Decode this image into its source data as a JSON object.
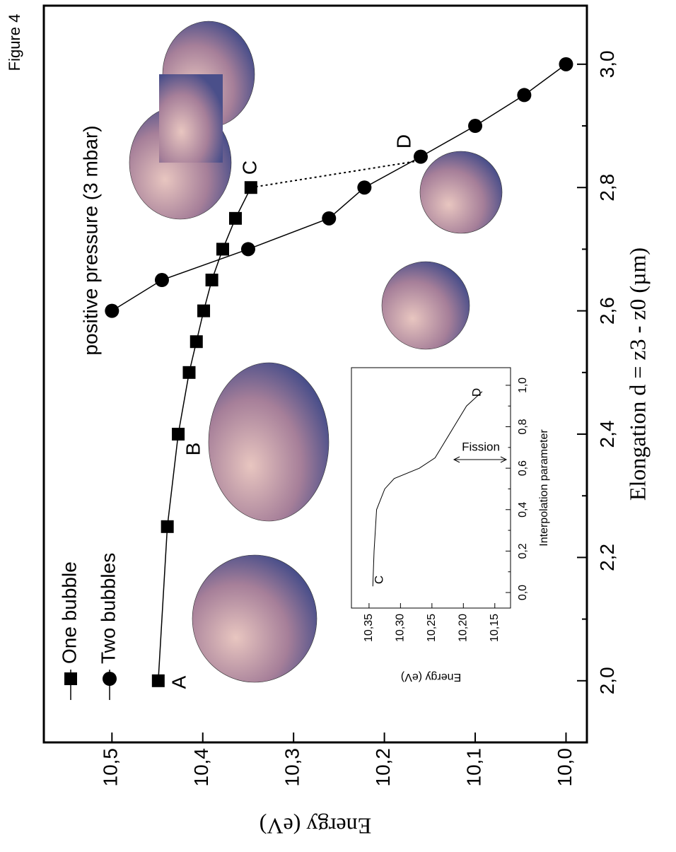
{
  "figure_label": "Figure 4",
  "chart_data": [
    {
      "type": "line",
      "x_label": "Elongation d = z3 - z0  (µm)",
      "y_label": "Energy (eV)",
      "xlim": [
        1.9,
        3.095
      ],
      "ylim": [
        9.977,
        10.575
      ],
      "xticks": [
        {
          "value": 2.0,
          "label": "2,0"
        },
        {
          "value": 2.2,
          "label": "2,2"
        },
        {
          "value": 2.4,
          "label": "2,4"
        },
        {
          "value": 2.6,
          "label": "2,6"
        },
        {
          "value": 2.8,
          "label": "2,8"
        },
        {
          "value": 3.0,
          "label": "3,0"
        }
      ],
      "yticks": [
        {
          "value": 10.0,
          "label": "10,0"
        },
        {
          "value": 10.1,
          "label": "10,1"
        },
        {
          "value": 10.2,
          "label": "10,2"
        },
        {
          "value": 10.3,
          "label": "10,3"
        },
        {
          "value": 10.4,
          "label": "10,4"
        },
        {
          "value": 10.5,
          "label": "10,5"
        }
      ],
      "series": [
        {
          "name": "One bubble",
          "color": "#000000",
          "marker": "square",
          "x": [
            2.0,
            2.25,
            2.4,
            2.5,
            2.55,
            2.6,
            2.65,
            2.7,
            2.75,
            2.8
          ],
          "values": [
            10.449,
            10.439,
            10.427,
            10.415,
            10.407,
            10.399,
            10.39,
            10.378,
            10.364,
            10.347
          ]
        },
        {
          "name": "Two bubbles",
          "color": "#000000",
          "marker": "circle",
          "x": [
            2.6,
            2.65,
            2.7,
            2.75,
            2.8,
            2.85,
            2.9,
            2.95,
            3.0
          ],
          "values": [
            10.5,
            10.445,
            10.35,
            10.261,
            10.222,
            10.16,
            10.1,
            10.046,
            10.0
          ]
        }
      ],
      "annotations": [
        "A",
        "B",
        "C",
        "D",
        "positive pressure (3 mbar)"
      ]
    },
    {
      "type": "line",
      "x_label": "Interpolation parameter",
      "y_label": "Energy (eV)",
      "xlim": [
        -0.075,
        1.085
      ],
      "ylim": [
        10.125,
        10.378
      ],
      "xticks": [
        {
          "value": 0.0,
          "label": "0,0"
        },
        {
          "value": 0.1,
          "label": "0,1"
        },
        {
          "value": 0.2,
          "label": "0,2"
        },
        {
          "value": 0.3,
          "label": "0,3"
        },
        {
          "value": 0.4,
          "label": "0,4"
        },
        {
          "value": 0.5,
          "label": "0,5"
        },
        {
          "value": 0.6,
          "label": "0,6"
        },
        {
          "value": 0.7,
          "label": "0,7"
        },
        {
          "value": 0.8,
          "label": "0,8"
        },
        {
          "value": 0.9,
          "label": "0,9"
        },
        {
          "value": 1.0,
          "label": "1,0"
        }
      ],
      "yticks": [
        {
          "value": 10.15,
          "label": "10,15"
        },
        {
          "value": 10.2,
          "label": "10,20"
        },
        {
          "value": 10.25,
          "label": "10,25"
        },
        {
          "value": 10.3,
          "label": "10,30"
        },
        {
          "value": 10.35,
          "label": "10,35"
        }
      ],
      "series": [
        {
          "color": "#000000",
          "x": [
            0.03,
            0.2,
            0.4,
            0.5,
            0.55,
            0.6,
            0.65,
            0.7,
            0.8,
            0.9,
            0.97
          ],
          "values": [
            10.344,
            10.342,
            10.338,
            10.325,
            10.31,
            10.27,
            10.245,
            10.235,
            10.215,
            10.195,
            10.17
          ]
        }
      ],
      "annotations": [
        "C",
        "D",
        "Fission"
      ]
    }
  ]
}
